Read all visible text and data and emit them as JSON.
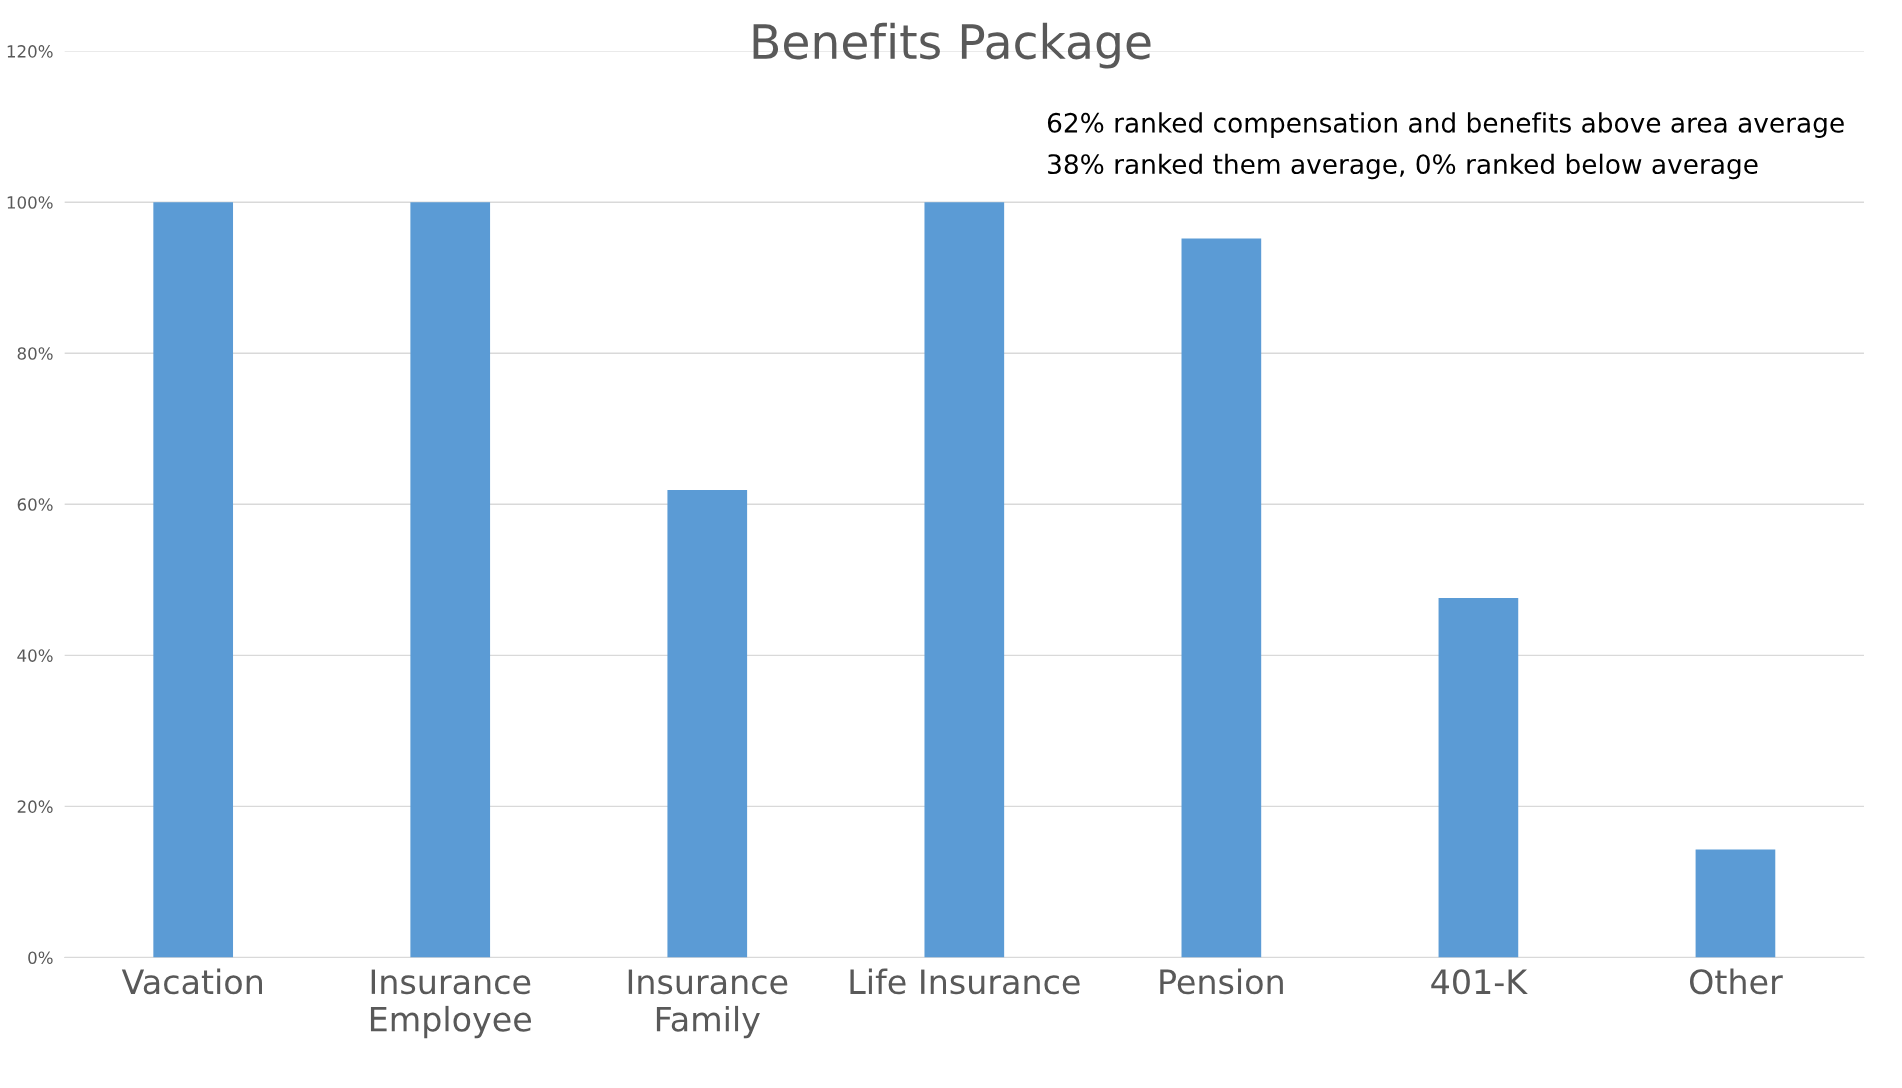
{
  "chart_data": {
    "type": "bar",
    "title": "Benefits Package",
    "categories": [
      "Vacation",
      "Insurance\nEmployee",
      "Insurance\nFamily",
      "Life Insurance",
      "Pension",
      "401-K",
      "Other"
    ],
    "values": [
      100,
      100,
      61.9,
      100,
      95.2,
      47.6,
      14.3
    ],
    "color": "#5b9bd5",
    "ylim": [
      0,
      120
    ],
    "yticks": [
      {
        "value": 0,
        "label": "0%"
      },
      {
        "value": 20,
        "label": "20%"
      },
      {
        "value": 40,
        "label": "40%"
      },
      {
        "value": 60,
        "label": "60%"
      },
      {
        "value": 80,
        "label": "80%"
      },
      {
        "value": 100,
        "label": "100%"
      },
      {
        "value": 120,
        "label": "120%"
      }
    ],
    "grid": "y",
    "annotations": [
      "62% ranked compensation and benefits above area average",
      "38% ranked them average, 0% ranked below average"
    ]
  }
}
